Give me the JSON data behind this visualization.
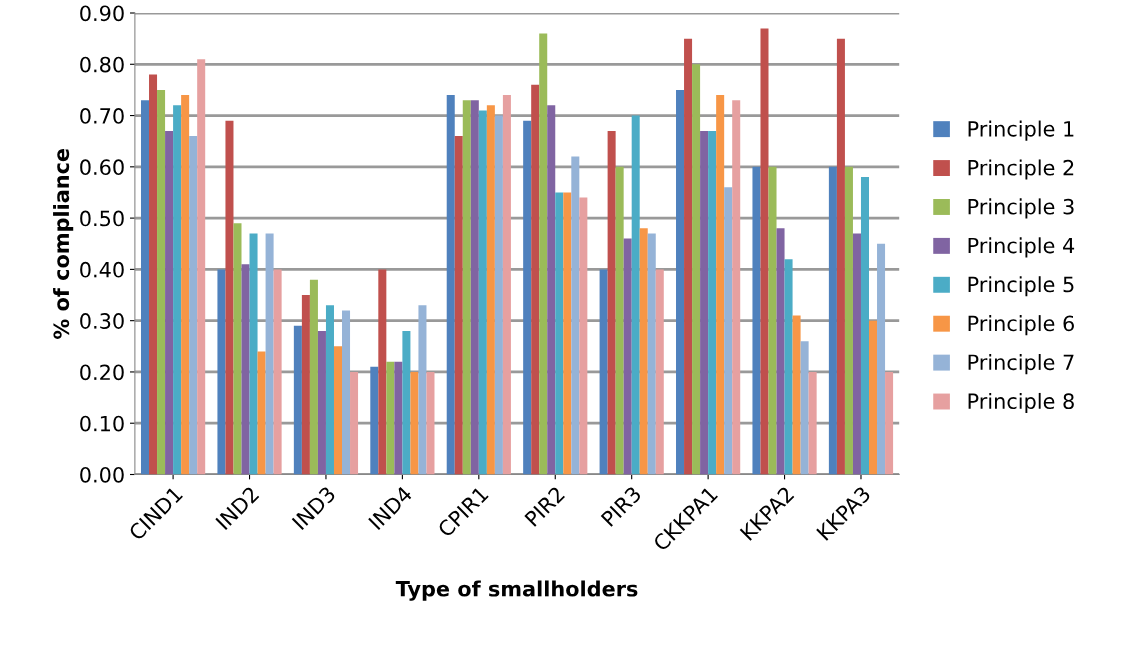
{
  "chart_data": {
    "type": "bar",
    "xlabel": "Type of smallholders",
    "ylabel": "% of compliance",
    "categories": [
      "CIND1",
      "IND2",
      "IND3",
      "IND4",
      "CPIR1",
      "PIR2",
      "PIR3",
      "CKKPA1",
      "KKPA2",
      "KKPA3"
    ],
    "series": [
      {
        "name": "Principle 1",
        "color": "#4f81bd",
        "values": [
          0.73,
          0.4,
          0.29,
          0.21,
          0.74,
          0.69,
          0.4,
          0.75,
          0.6,
          0.6
        ]
      },
      {
        "name": "Principle 2",
        "color": "#c0504d",
        "values": [
          0.78,
          0.69,
          0.35,
          0.4,
          0.66,
          0.76,
          0.67,
          0.85,
          0.87,
          0.85
        ]
      },
      {
        "name": "Principle 3",
        "color": "#9bbb59",
        "values": [
          0.75,
          0.49,
          0.38,
          0.22,
          0.73,
          0.86,
          0.6,
          0.8,
          0.6,
          0.6
        ]
      },
      {
        "name": "Principle 4",
        "color": "#8064a2",
        "values": [
          0.67,
          0.41,
          0.28,
          0.22,
          0.73,
          0.72,
          0.46,
          0.67,
          0.48,
          0.47
        ]
      },
      {
        "name": "Principle 5",
        "color": "#4bacc6",
        "values": [
          0.72,
          0.47,
          0.33,
          0.28,
          0.71,
          0.55,
          0.7,
          0.67,
          0.42,
          0.58
        ]
      },
      {
        "name": "Principle 6",
        "color": "#f79646",
        "values": [
          0.74,
          0.24,
          0.25,
          0.2,
          0.72,
          0.55,
          0.48,
          0.74,
          0.31,
          0.3
        ]
      },
      {
        "name": "Principle 7",
        "color": "#95b3d7",
        "values": [
          0.66,
          0.47,
          0.32,
          0.33,
          0.7,
          0.62,
          0.47,
          0.56,
          0.26,
          0.45
        ]
      },
      {
        "name": "Principle 8",
        "color": "#e6a0a0",
        "values": [
          0.81,
          0.4,
          0.2,
          0.2,
          0.74,
          0.54,
          0.4,
          0.73,
          0.2,
          0.2
        ]
      }
    ],
    "ylim": [
      0,
      0.9
    ],
    "yticks": [
      {
        "value": 0,
        "label": "0.00"
      },
      {
        "value": 0.1,
        "label": "0.10"
      },
      {
        "value": 0.2,
        "label": "0.20"
      },
      {
        "value": 0.3,
        "label": "0.30"
      },
      {
        "value": 0.4,
        "label": "0.40"
      },
      {
        "value": 0.5,
        "label": "0.50"
      },
      {
        "value": 0.6,
        "label": "0.60"
      },
      {
        "value": 0.7,
        "label": "0.70"
      },
      {
        "value": 0.8,
        "label": "0.80"
      },
      {
        "value": 0.9,
        "label": "0.90"
      }
    ],
    "grid": "y",
    "legend": "right"
  }
}
